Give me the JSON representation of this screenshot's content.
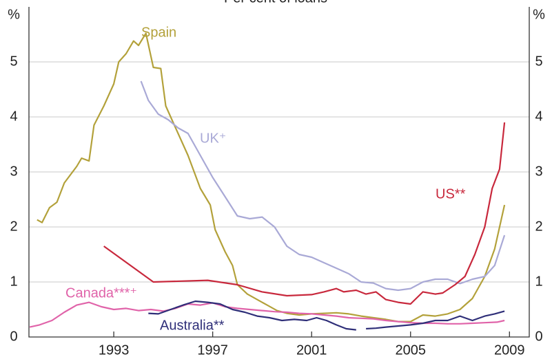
{
  "chart_data": {
    "type": "line",
    "title": "Per cent of loans",
    "y_label": "%",
    "y2_label": "%",
    "xlim": [
      1989.57,
      2009.8
    ],
    "xticks": [
      1993,
      1997,
      2001,
      2005,
      2009
    ],
    "ylim": [
      0,
      6
    ],
    "yticks": [
      0,
      1,
      2,
      3,
      4,
      5
    ],
    "y2lim": [
      0,
      6
    ],
    "y2ticks": [
      0,
      1,
      2,
      3,
      4,
      5
    ],
    "grid": true,
    "series": [
      {
        "name": "Spain",
        "color": "#b3a13a",
        "x": [
          1989.9,
          1990.1,
          1990.4,
          1990.7,
          1991.0,
          1991.5,
          1991.7,
          1992.0,
          1992.2,
          1992.6,
          1993.0,
          1993.2,
          1993.5,
          1993.8,
          1994.0,
          1994.3,
          1994.6,
          1994.9,
          1995.1,
          1995.5,
          1996.0,
          1996.5,
          1996.9,
          1997.1,
          1997.5,
          1997.8,
          1998.0,
          1998.4,
          1998.8,
          1999.2,
          1999.6,
          2000,
          2000.5,
          2001,
          2001.5,
          2002,
          2002.5,
          2003,
          2003.5,
          2004,
          2004.5,
          2005,
          2005.5,
          2006,
          2006.5,
          2007,
          2007.5,
          2008,
          2008.4,
          2008.8
        ],
        "values": [
          2.13,
          2.08,
          2.35,
          2.45,
          2.8,
          3.1,
          3.25,
          3.2,
          3.85,
          4.2,
          4.6,
          5.0,
          5.15,
          5.38,
          5.3,
          5.52,
          4.9,
          4.88,
          4.2,
          3.8,
          3.3,
          2.7,
          2.4,
          1.95,
          1.55,
          1.3,
          0.95,
          0.78,
          0.68,
          0.58,
          0.48,
          0.43,
          0.4,
          0.42,
          0.43,
          0.44,
          0.42,
          0.38,
          0.35,
          0.32,
          0.28,
          0.28,
          0.4,
          0.38,
          0.42,
          0.5,
          0.7,
          1.1,
          1.6,
          2.4
        ]
      },
      {
        "name": "UK⁺",
        "color": "#a9a9d6",
        "x": [
          1994.1,
          1994.4,
          1994.8,
          1995.2,
          1995.6,
          1996,
          1996.5,
          1997,
          1997.5,
          1998,
          1998.5,
          1999,
          1999.5,
          2000,
          2000.5,
          2001,
          2001.5,
          2002,
          2002.5,
          2003,
          2003.5,
          2004,
          2004.5,
          2005,
          2005.5,
          2006,
          2006.5,
          2007,
          2007.5,
          2008,
          2008.4,
          2008.8
        ],
        "values": [
          4.65,
          4.3,
          4.05,
          3.95,
          3.8,
          3.7,
          3.3,
          2.9,
          2.55,
          2.2,
          2.15,
          2.18,
          2.0,
          1.65,
          1.5,
          1.45,
          1.35,
          1.25,
          1.15,
          1.0,
          0.98,
          0.88,
          0.85,
          0.88,
          1.0,
          1.05,
          1.05,
          0.97,
          1.05,
          1.1,
          1.3,
          1.85
        ]
      },
      {
        "name": "US**",
        "color": "#c8283c",
        "x": [
          1992.6,
          1994.6,
          1996.8,
          1998,
          1999,
          2000,
          2001,
          2001.5,
          2002,
          2002.3,
          2002.8,
          2003.2,
          2003.6,
          2004,
          2004.5,
          2005,
          2005.5,
          2006,
          2006.3,
          2006.8,
          2007.2,
          2007.6,
          2008,
          2008.3,
          2008.6,
          2008.8
        ],
        "values": [
          1.65,
          1.0,
          1.03,
          0.95,
          0.82,
          0.75,
          0.77,
          0.82,
          0.88,
          0.82,
          0.85,
          0.78,
          0.82,
          0.68,
          0.63,
          0.6,
          0.82,
          0.78,
          0.8,
          0.95,
          1.1,
          1.5,
          2.0,
          2.7,
          3.05,
          3.9
        ]
      },
      {
        "name": "Canada***⁺",
        "color": "#e063a9",
        "x": [
          1989.6,
          1990,
          1990.5,
          1991,
          1991.5,
          1992,
          1992.5,
          1993,
          1993.5,
          1994,
          1994.5,
          1995,
          1995.5,
          1996,
          1996.5,
          1997,
          1997.5,
          1998,
          1998.5,
          1999,
          1999.5,
          2000,
          2000.5,
          2001,
          2001.5,
          2002,
          2002.5,
          2003,
          2003.5,
          2004,
          2004.5,
          2005,
          2005.5,
          2006,
          2006.5,
          2007,
          2007.5,
          2008,
          2008.5,
          2008.8
        ],
        "values": [
          0.18,
          0.22,
          0.3,
          0.45,
          0.58,
          0.63,
          0.55,
          0.5,
          0.52,
          0.48,
          0.5,
          0.47,
          0.52,
          0.6,
          0.58,
          0.62,
          0.55,
          0.52,
          0.5,
          0.48,
          0.46,
          0.45,
          0.43,
          0.42,
          0.4,
          0.38,
          0.35,
          0.34,
          0.33,
          0.3,
          0.28,
          0.26,
          0.25,
          0.25,
          0.24,
          0.24,
          0.25,
          0.26,
          0.27,
          0.3
        ]
      },
      {
        "name": "Australia**",
        "color": "#2e2e78",
        "x": [
          1994.4,
          1994.8,
          1995.3,
          1995.8,
          1996.3,
          1996.8,
          1997.3,
          1997.8,
          1998.3,
          1998.8,
          1999.3,
          1999.8,
          2000.3,
          2000.8,
          2001.2,
          2001.6,
          2002,
          2002.4,
          2002.8,
          2003,
          2003.2,
          2003.6,
          2004,
          2004.5,
          2005,
          2005.5,
          2006,
          2006.5,
          2007,
          2007.5,
          2008,
          2008.4,
          2008.8
        ],
        "values": [
          0.43,
          0.42,
          0.5,
          0.58,
          0.65,
          0.63,
          0.6,
          0.5,
          0.45,
          0.38,
          0.35,
          0.3,
          0.32,
          0.3,
          0.35,
          0.3,
          0.22,
          0.15,
          0.13,
          null,
          0.15,
          0.16,
          0.18,
          0.2,
          0.22,
          0.25,
          0.3,
          0.3,
          0.38,
          0.3,
          0.38,
          0.42,
          0.47
        ]
      }
    ]
  }
}
